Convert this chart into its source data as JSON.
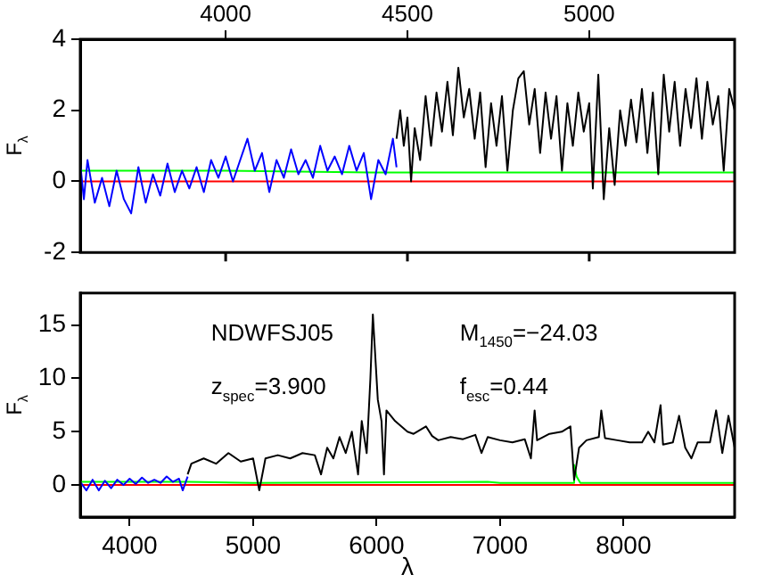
{
  "chart_data": [
    {
      "type": "line",
      "ylabel": "F$_{λ}$",
      "xlim": [
        3600,
        5400
      ],
      "xticks": [
        4000,
        4500,
        5000
      ],
      "ylim": [
        -2,
        4
      ],
      "yticks": [
        -2,
        0,
        2,
        4
      ],
      "grid": false,
      "legend": false,
      "marker": "none",
      "line_style": "solid",
      "series": [
        {
          "color": "#0000ff",
          "x": [
            3600,
            3610,
            3620,
            3640,
            3660,
            3680,
            3700,
            3720,
            3740,
            3760,
            3780,
            3800,
            3820,
            3840,
            3860,
            3880,
            3900,
            3920,
            3940,
            3960,
            3980,
            4000,
            4020,
            4040,
            4060,
            4080,
            4100,
            4120,
            4140,
            4160,
            4180,
            4200,
            4220,
            4240,
            4260,
            4280,
            4300,
            4320,
            4340,
            4360,
            4380,
            4400,
            4420,
            4440,
            4460,
            4470
          ],
          "values": [
            0.5,
            -0.5,
            0.6,
            -0.6,
            0.1,
            -0.7,
            0.3,
            -0.5,
            -0.9,
            0.4,
            -0.6,
            0.2,
            -0.4,
            0.5,
            -0.3,
            0.3,
            -0.2,
            0.4,
            -0.3,
            0.6,
            0.1,
            0.7,
            0.0,
            0.6,
            1.2,
            0.3,
            0.8,
            -0.3,
            0.6,
            0.1,
            0.9,
            0.2,
            0.6,
            0.1,
            1.0,
            0.3,
            0.7,
            0.2,
            1.0,
            0.3,
            0.8,
            -0.5,
            0.6,
            0.2,
            1.2,
            0.4
          ]
        },
        {
          "color": "#000000",
          "x": [
            4470,
            4480,
            4490,
            4500,
            4510,
            4520,
            4535,
            4550,
            4565,
            4580,
            4595,
            4610,
            4625,
            4640,
            4655,
            4670,
            4685,
            4700,
            4715,
            4730,
            4745,
            4760,
            4775,
            4790,
            4805,
            4820,
            4835,
            4850,
            4865,
            4880,
            4895,
            4910,
            4925,
            4940,
            4955,
            4970,
            4985,
            5000,
            5010,
            5025,
            5040,
            5055,
            5070,
            5085,
            5100,
            5115,
            5130,
            5145,
            5160,
            5175,
            5190,
            5205,
            5220,
            5235,
            5250,
            5265,
            5280,
            5295,
            5310,
            5325,
            5340,
            5355,
            5370,
            5385,
            5400
          ],
          "values": [
            1.2,
            2.0,
            1.0,
            1.8,
            0.0,
            1.5,
            0.6,
            2.4,
            1.0,
            2.5,
            1.4,
            2.8,
            1.3,
            3.2,
            1.8,
            2.6,
            1.2,
            2.5,
            0.4,
            2.2,
            1.0,
            2.4,
            0.3,
            2.0,
            2.9,
            3.1,
            1.6,
            2.6,
            0.8,
            2.5,
            1.2,
            2.4,
            0.3,
            2.2,
            1.0,
            2.5,
            1.4,
            2.2,
            -0.2,
            3.0,
            -0.5,
            1.5,
            -0.1,
            2.0,
            1.0,
            2.3,
            1.1,
            2.6,
            0.8,
            2.5,
            0.2,
            3.0,
            1.4,
            2.8,
            1.0,
            2.6,
            1.5,
            2.9,
            1.2,
            2.8,
            1.6,
            2.4,
            0.3,
            2.6,
            2.0
          ]
        },
        {
          "color": "#00ff00",
          "x": [
            3600,
            4000,
            4400,
            5000,
            5400
          ],
          "values": [
            0.3,
            0.3,
            0.25,
            0.25,
            0.25
          ]
        },
        {
          "color": "#ff0000",
          "x": [
            3600,
            5400
          ],
          "values": [
            0,
            0
          ]
        }
      ]
    },
    {
      "type": "line",
      "xlabel": "λ",
      "ylabel": "F$_{λ}$",
      "xlim": [
        3600,
        8900
      ],
      "xticks": [
        4000,
        5000,
        6000,
        7000,
        8000
      ],
      "ylim": [
        -3,
        18
      ],
      "yticks": [
        0,
        5,
        10,
        15
      ],
      "grid": false,
      "legend": false,
      "marker": "none",
      "line_style": "solid",
      "annotations": [
        "NDWFSJ05",
        "M$_{1450}$=−24.03",
        "z$_{spec}$=3.900",
        "f$_{esc}$=0.44"
      ],
      "series": [
        {
          "color": "#0000ff",
          "x": [
            3600,
            3650,
            3700,
            3750,
            3800,
            3850,
            3900,
            3950,
            4000,
            4050,
            4100,
            4150,
            4200,
            4250,
            4300,
            4350,
            4400,
            4430,
            4470
          ],
          "values": [
            0.3,
            -0.5,
            0.5,
            -0.5,
            0.4,
            -0.3,
            0.5,
            0.0,
            0.6,
            0.1,
            0.7,
            0.2,
            0.5,
            0.2,
            0.8,
            0.3,
            0.6,
            -0.5,
            0.8
          ]
        },
        {
          "color": "#000000",
          "x": [
            4470,
            4500,
            4600,
            4700,
            4800,
            4900,
            5000,
            5050,
            5100,
            5200,
            5300,
            5400,
            5500,
            5550,
            5600,
            5650,
            5700,
            5750,
            5800,
            5850,
            5880,
            5920,
            5950,
            5970,
            5990,
            6010,
            6040,
            6060,
            6080,
            6150,
            6250,
            6300,
            6400,
            6450,
            6500,
            6600,
            6700,
            6800,
            6850,
            6900,
            7000,
            7100,
            7200,
            7250,
            7280,
            7300,
            7400,
            7500,
            7570,
            7600,
            7640,
            7700,
            7800,
            7820,
            7850,
            7950,
            8050,
            8150,
            8200,
            8250,
            8300,
            8320,
            8400,
            8450,
            8500,
            8550,
            8600,
            8700,
            8750,
            8800,
            8850,
            8900
          ],
          "values": [
            1.0,
            2.0,
            2.5,
            2.0,
            3.0,
            2.2,
            2.5,
            -0.5,
            2.5,
            2.8,
            2.5,
            3.0,
            2.8,
            1.0,
            3.5,
            2.5,
            4.5,
            3.0,
            5.0,
            1.0,
            6.0,
            3.0,
            10.0,
            16.0,
            12.0,
            8.0,
            6.0,
            1.0,
            7.0,
            6.0,
            5.0,
            4.8,
            5.5,
            4.6,
            4.2,
            4.5,
            4.3,
            4.7,
            3.0,
            4.5,
            4.2,
            4.0,
            4.3,
            2.5,
            7.0,
            4.2,
            4.8,
            5.0,
            5.5,
            0.5,
            3.5,
            4.2,
            4.5,
            7.0,
            4.4,
            4.2,
            4.0,
            4.0,
            5.0,
            4.0,
            7.5,
            3.8,
            4.0,
            6.5,
            3.5,
            2.5,
            4.0,
            4.0,
            7.0,
            3.0,
            6.5,
            3.5
          ]
        },
        {
          "color": "#00ff00",
          "x": [
            3600,
            4470,
            5000,
            6900,
            7000,
            7590,
            7600,
            7620,
            7650,
            8900
          ],
          "values": [
            0.3,
            0.3,
            0.2,
            0.3,
            0.2,
            0.2,
            1.9,
            0.8,
            0.2,
            0.2
          ]
        },
        {
          "color": "#ff0000",
          "x": [
            3600,
            8900
          ],
          "values": [
            0,
            0
          ]
        }
      ]
    }
  ]
}
